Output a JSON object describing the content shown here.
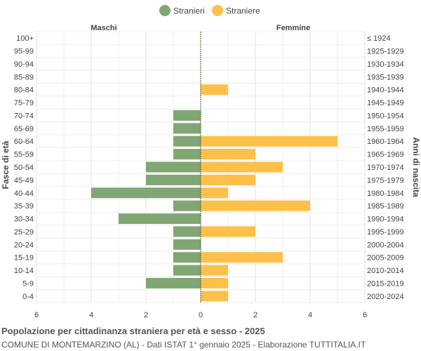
{
  "chart_data": {
    "type": "bar",
    "orientation": "horizontal-pyramid",
    "legend": {
      "placement": "top-center",
      "items": [
        {
          "name": "Stranieri",
          "color": "#82a673"
        },
        {
          "name": "Straniere",
          "color": "#fdc04a"
        }
      ]
    },
    "left_header": "Maschi",
    "right_header": "Femmine",
    "ylabel_left": "Fasce di età",
    "ylabel_right": "Anni di nascita",
    "xlim": [
      -6,
      6
    ],
    "xticks": [
      "6",
      "4",
      "2",
      "0",
      "2",
      "4",
      "6"
    ],
    "categories": [
      "100+",
      "95-99",
      "90-94",
      "85-89",
      "80-84",
      "75-79",
      "70-74",
      "65-69",
      "60-64",
      "55-59",
      "50-54",
      "45-49",
      "40-44",
      "35-39",
      "30-34",
      "25-29",
      "20-24",
      "15-19",
      "10-14",
      "5-9",
      "0-4"
    ],
    "birth_years": [
      "≤ 1924",
      "1925-1929",
      "1930-1934",
      "1935-1939",
      "1940-1944",
      "1945-1949",
      "1950-1954",
      "1955-1959",
      "1960-1964",
      "1965-1969",
      "1970-1974",
      "1975-1979",
      "1980-1984",
      "1985-1989",
      "1990-1994",
      "1995-1999",
      "2000-2004",
      "2005-2009",
      "2010-2014",
      "2015-2019",
      "2020-2024"
    ],
    "series": [
      {
        "name": "Stranieri",
        "values": [
          0,
          0,
          0,
          0,
          0,
          0,
          1,
          1,
          1,
          1,
          2,
          2,
          4,
          1,
          3,
          1,
          1,
          1,
          1,
          2,
          0
        ]
      },
      {
        "name": "Straniere",
        "values": [
          0,
          0,
          0,
          0,
          1,
          0,
          0,
          0,
          5,
          2,
          3,
          2,
          1,
          4,
          0,
          2,
          0,
          3,
          1,
          1,
          1
        ]
      }
    ],
    "grid": true
  },
  "footer": {
    "title": "Popolazione per cittadinanza straniera per età e sesso - 2025",
    "subtitle": "COMUNE DI MONTEMARZINO (AL) - Dati ISTAT 1° gennaio 2025 - Elaborazione TUTTITALIA.IT"
  }
}
